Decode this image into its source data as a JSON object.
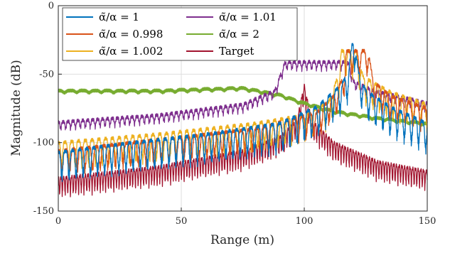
{
  "chart_data": {
    "type": "line",
    "xlabel": "Range (m)",
    "ylabel": "Magnitude (dB)",
    "xlim": [
      0,
      150
    ],
    "ylim": [
      -150,
      0
    ],
    "xticks": [
      0,
      50,
      100,
      150
    ],
    "yticks": [
      0,
      -50,
      -100,
      -150
    ],
    "xtick_labels": [
      "0",
      "50",
      "100",
      "150"
    ],
    "ytick_labels": [
      "0",
      "-50",
      "-100",
      "-150"
    ],
    "grid": true,
    "legend_position": "top-left",
    "series": [
      {
        "name": "α̃/α = 1",
        "color": "#0072bd",
        "floor": [
          [
            0,
            -107
          ],
          [
            30,
            -100
          ],
          [
            60,
            -94
          ],
          [
            90,
            -86
          ],
          [
            105,
            -74
          ],
          [
            115,
            -58
          ],
          [
            118,
            -48
          ],
          [
            120,
            -20
          ],
          [
            122,
            -48
          ],
          [
            125,
            -62
          ],
          [
            135,
            -74
          ],
          [
            150,
            -86
          ]
        ],
        "ripple_depth": 22,
        "ripple_period": 5.8
      },
      {
        "name": "α̃/α = 0.998",
        "color": "#d95319",
        "floor": [
          [
            0,
            -106
          ],
          [
            40,
            -98
          ],
          [
            80,
            -90
          ],
          [
            105,
            -78
          ],
          [
            112,
            -66
          ],
          [
            116,
            -52
          ],
          [
            117,
            -33
          ],
          [
            126,
            -33
          ],
          [
            128,
            -55
          ],
          [
            135,
            -66
          ],
          [
            150,
            -75
          ]
        ],
        "ripple_depth": 18,
        "ripple_period": 6.2
      },
      {
        "name": "α̃/α = 1.002",
        "color": "#edb120",
        "floor": [
          [
            0,
            -100
          ],
          [
            40,
            -94
          ],
          [
            80,
            -86
          ],
          [
            100,
            -80
          ],
          [
            110,
            -70
          ],
          [
            114,
            -50
          ],
          [
            115,
            -33
          ],
          [
            121,
            -33
          ],
          [
            124,
            -52
          ],
          [
            135,
            -63
          ],
          [
            150,
            -72
          ]
        ],
        "ripple_depth": 20,
        "ripple_period": 5.5
      },
      {
        "name": "α̃/α = 1.01",
        "color": "#7e2f8e",
        "floor": [
          [
            0,
            -85
          ],
          [
            40,
            -80
          ],
          [
            75,
            -72
          ],
          [
            88,
            -62
          ],
          [
            92,
            -42
          ],
          [
            93,
            -41
          ],
          [
            117,
            -41
          ],
          [
            118,
            -42
          ],
          [
            120,
            -55
          ],
          [
            128,
            -62
          ],
          [
            150,
            -71
          ]
        ],
        "ripple_depth": 6,
        "ripple_period": 4.0
      },
      {
        "name": "α̃/α = 2",
        "color": "#77ac30",
        "floor": [
          [
            0,
            -62
          ],
          [
            40,
            -62
          ],
          [
            75,
            -60
          ],
          [
            90,
            -65
          ],
          [
            100,
            -71
          ],
          [
            112,
            -77
          ],
          [
            130,
            -82
          ],
          [
            150,
            -86
          ]
        ],
        "ripple_depth": 1.5,
        "ripple_period": 10
      },
      {
        "name": "Target",
        "color": "#a2142f",
        "floor": [
          [
            0,
            -126
          ],
          [
            40,
            -118
          ],
          [
            75,
            -106
          ],
          [
            90,
            -96
          ],
          [
            97,
            -84
          ],
          [
            100,
            -58
          ],
          [
            103,
            -84
          ],
          [
            112,
            -100
          ],
          [
            130,
            -114
          ],
          [
            150,
            -121
          ]
        ],
        "ripple_depth": 14,
        "ripple_period": 2.2
      }
    ]
  }
}
